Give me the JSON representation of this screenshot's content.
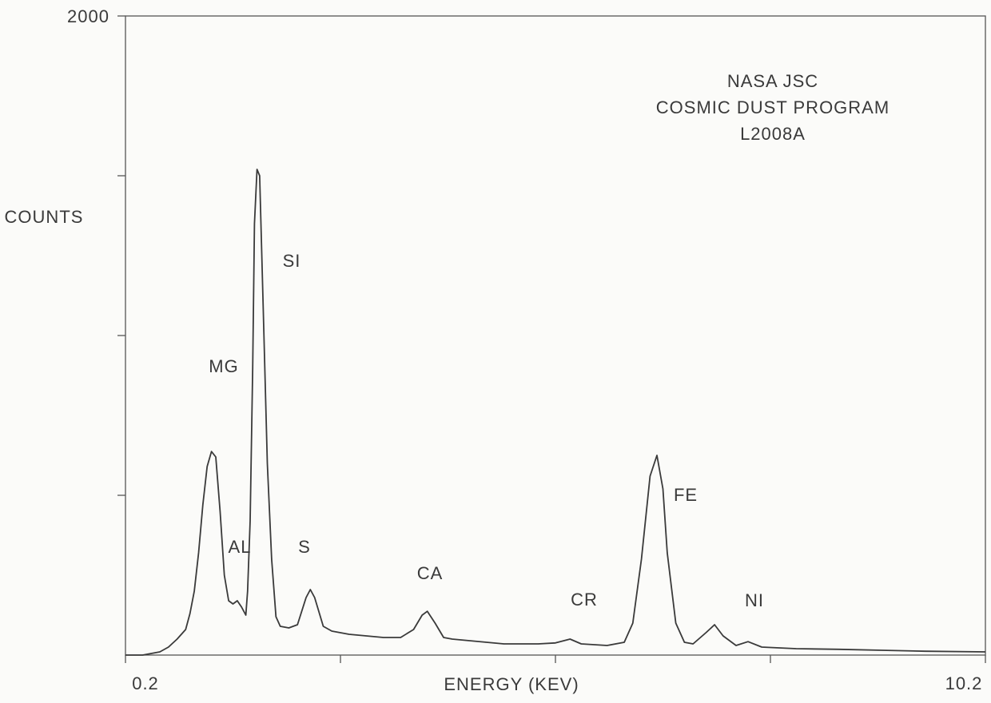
{
  "chart_data": {
    "type": "line",
    "title": [
      "NASA JSC",
      "COSMIC DUST PROGRAM",
      "L2008A"
    ],
    "y_label": "COUNTS",
    "x_label": "ENERGY (KEV)",
    "color": "#3a3a3a",
    "xlim": [
      0.2,
      10.2
    ],
    "xticks": [
      0.2,
      10.2
    ],
    "xtick_marks": [
      2.7,
      5.2,
      7.7
    ],
    "ylim": [
      0,
      2000
    ],
    "yticks": [
      2000
    ],
    "ytick_marks": [
      500,
      1000,
      1500
    ],
    "peak_labels": [
      "MG",
      "AL",
      "SI",
      "S",
      "CA",
      "CR",
      "FE",
      "NI"
    ],
    "x": [
      0.2,
      0.4,
      0.5,
      0.6,
      0.7,
      0.8,
      0.9,
      0.95,
      1.0,
      1.05,
      1.1,
      1.15,
      1.2,
      1.25,
      1.3,
      1.35,
      1.4,
      1.45,
      1.5,
      1.55,
      1.6,
      1.62,
      1.65,
      1.68,
      1.7,
      1.73,
      1.76,
      1.8,
      1.85,
      1.9,
      1.95,
      2.0,
      2.1,
      2.2,
      2.3,
      2.35,
      2.4,
      2.5,
      2.6,
      2.8,
      3.0,
      3.2,
      3.4,
      3.55,
      3.65,
      3.71,
      3.8,
      3.9,
      4.0,
      4.2,
      4.4,
      4.6,
      4.8,
      5.0,
      5.2,
      5.37,
      5.5,
      5.8,
      6.0,
      6.1,
      6.2,
      6.3,
      6.38,
      6.45,
      6.5,
      6.6,
      6.7,
      6.8,
      6.95,
      7.05,
      7.15,
      7.3,
      7.44,
      7.6,
      8.0,
      8.5,
      9.0,
      9.5,
      10.2
    ],
    "values": [
      0,
      0,
      5,
      10,
      25,
      50,
      80,
      130,
      200,
      320,
      470,
      590,
      637,
      620,
      450,
      250,
      170,
      160,
      170,
      150,
      125,
      200,
      420,
      900,
      1350,
      1520,
      1500,
      1100,
      600,
      300,
      120,
      90,
      85,
      95,
      180,
      205,
      180,
      90,
      75,
      65,
      60,
      55,
      55,
      80,
      125,
      137,
      100,
      55,
      50,
      45,
      40,
      35,
      35,
      35,
      38,
      50,
      35,
      30,
      40,
      100,
      300,
      560,
      625,
      520,
      320,
      100,
      40,
      35,
      70,
      95,
      60,
      30,
      42,
      25,
      20,
      18,
      15,
      12,
      10
    ]
  }
}
